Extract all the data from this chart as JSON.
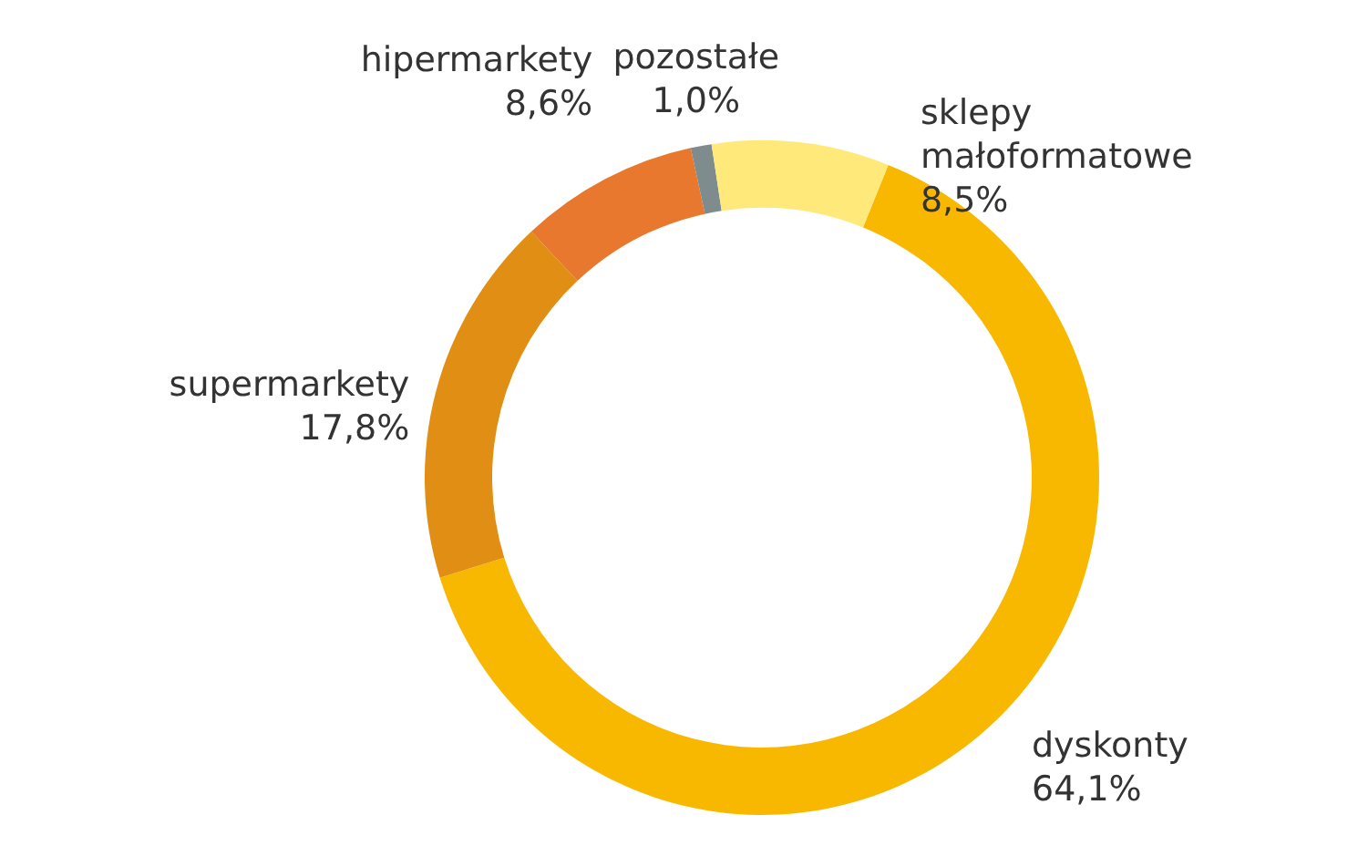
{
  "chart_data": {
    "type": "donut",
    "categories": [
      "dyskonty",
      "supermarkety",
      "hipermarkety",
      "pozostałe",
      "sklepy małoformatowe"
    ],
    "values": [
      64.1,
      17.8,
      8.6,
      1.0,
      8.5
    ],
    "colors": [
      "#f9b800",
      "#e08e14",
      "#e8782e",
      "#7f8c8d",
      "#ffe97a"
    ],
    "value_labels": [
      "64,1%",
      "17,8%",
      "8,6%",
      "1,0%",
      "8,5%"
    ]
  }
}
